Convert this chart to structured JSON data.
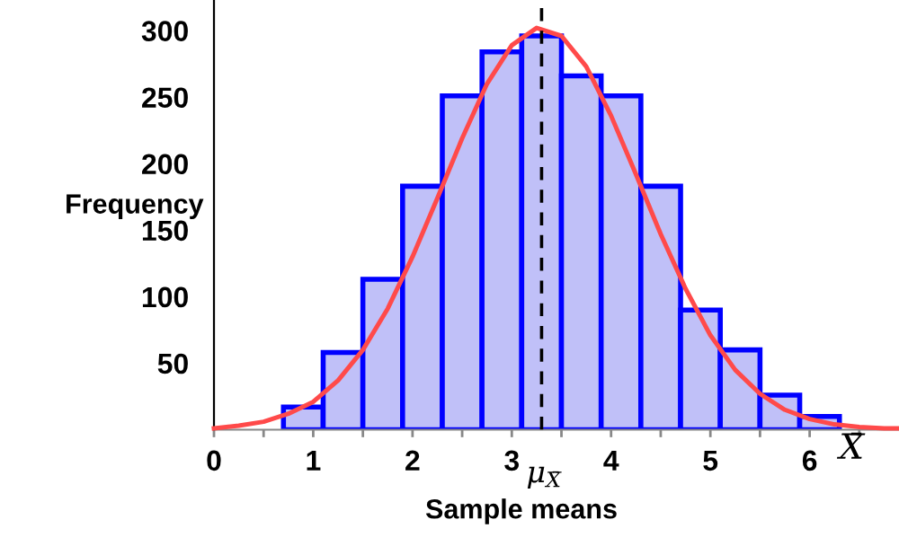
{
  "chart_data": {
    "type": "histogram",
    "xlabel": "Sample means",
    "ylabel": "Frequency",
    "bins": [
      0.7,
      1.1,
      1.5,
      1.9,
      2.3,
      2.7,
      3.1,
      3.5,
      3.9,
      4.3,
      4.7,
      5.1,
      5.5,
      5.9,
      6.3
    ],
    "values": [
      17,
      58,
      113,
      183,
      251,
      284,
      296,
      266,
      251,
      183,
      90,
      60,
      26,
      10
    ],
    "color": "#c0c0f8",
    "series": [
      {
        "type": "line",
        "color": "#ff4a4a",
        "x": [
          0,
          0.25,
          0.5,
          0.75,
          1.0,
          1.25,
          1.5,
          1.75,
          2.0,
          2.25,
          2.5,
          2.75,
          3.0,
          3.25,
          3.5,
          3.75,
          4.0,
          4.25,
          4.5,
          4.75,
          5.0,
          5.25,
          5.5,
          5.75,
          6.0,
          6.25,
          6.5,
          6.75,
          6.9
        ],
        "values": [
          1,
          3,
          6,
          12,
          21,
          37,
          60,
          91,
          130,
          174,
          219,
          260,
          289,
          302,
          296,
          273,
          236,
          192,
          147,
          106,
          71,
          45,
          27,
          15,
          8,
          4,
          2,
          1,
          1
        ]
      }
    ],
    "ref_lines": [
      {
        "axis": "x",
        "value": 3.3,
        "label": "μ$_{X̄}$",
        "color": "#000000",
        "line_style": "dashed"
      }
    ],
    "annotations": [
      "X̄"
    ],
    "xlim": [
      0,
      6.9
    ],
    "ylim": [
      0,
      323
    ],
    "xticks": [
      0,
      {
        "value": 0.5,
        "label": null
      },
      1,
      {
        "value": 1.5,
        "label": null
      },
      2,
      {
        "value": 2.5,
        "label": null
      },
      3,
      {
        "value": 3.5,
        "label": null
      },
      4,
      {
        "value": 4.5,
        "label": null
      },
      5,
      {
        "value": 5.5,
        "label": null
      },
      6,
      {
        "value": 6.5,
        "label": null
      }
    ],
    "yticks": [
      50,
      100,
      150,
      200,
      250,
      300
    ],
    "grid": false
  }
}
